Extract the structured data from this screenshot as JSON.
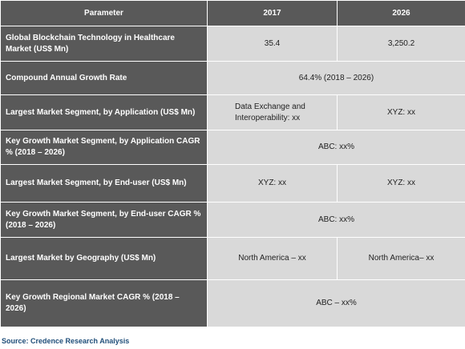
{
  "header": {
    "parameter": "Parameter",
    "year_a": "2017",
    "year_b": "2026"
  },
  "rows": [
    {
      "label": "Global Blockchain Technology in Healthcare Market (US$ Mn)",
      "a": "35.4",
      "b": "3,250.2"
    },
    {
      "label": "Compound Annual Growth Rate",
      "merged": "64.4% (2018 – 2026)"
    },
    {
      "label": "Largest Market Segment, by Application (US$ Mn)",
      "a": "Data Exchange and Interoperability: xx",
      "b": "XYZ: xx"
    },
    {
      "label": "Key Growth Market Segment, by Application CAGR % (2018 – 2026)",
      "merged": "ABC: xx%"
    },
    {
      "label": "Largest Market Segment, by End-user (US$ Mn)",
      "a": "XYZ: xx",
      "b": "XYZ: xx"
    },
    {
      "label": "Key Growth Market Segment, by End-user CAGR % (2018 – 2026)",
      "merged": "ABC: xx%"
    },
    {
      "label": "Largest Market by Geography (US$ Mn)",
      "a": "North America – xx",
      "b": "North America– xx"
    },
    {
      "label": "Key Growth Regional Market CAGR % (2018 – 2026)",
      "merged": "ABC – xx%"
    }
  ],
  "source": "Source: Credence Research Analysis",
  "colors": {
    "header_bg": "#595959",
    "value_bg": "#d9d9d9",
    "source_text": "#1f4e79"
  }
}
